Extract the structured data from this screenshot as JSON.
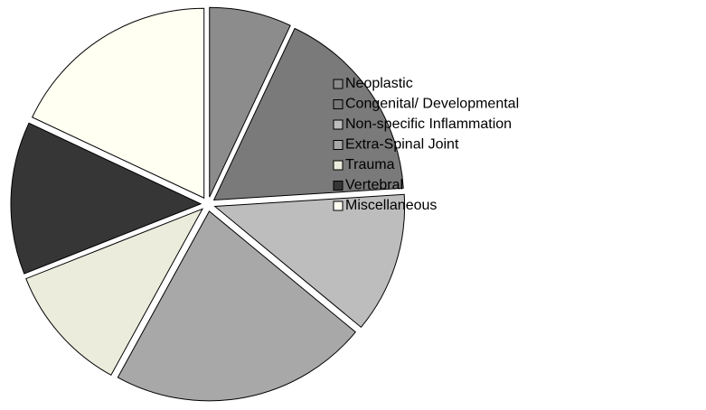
{
  "chart_data": {
    "type": "pie",
    "categories": [
      "Neoplastic",
      "Congenital/ Developmental",
      "Non-specific Inflammation",
      "Extra-Spinal Joint",
      "Trauma",
      "Vertebral",
      "Miscellaneous"
    ],
    "values": [
      7,
      17,
      12,
      22,
      11,
      13,
      18
    ],
    "colors": [
      "#8c8c8c",
      "#7a7a7a",
      "#bdbdbd",
      "#a8a8a8",
      "#ececdc",
      "#363636",
      "#fffff2"
    ],
    "legend": "right"
  }
}
